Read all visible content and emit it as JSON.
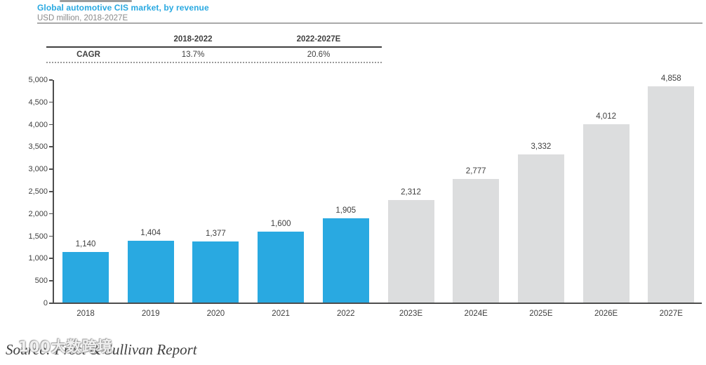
{
  "header": {
    "title": "Global automotive CIS market, by revenue",
    "subtitle": "USD million, 2018-2027E"
  },
  "cagr_table": {
    "row_label": "CAGR",
    "columns": [
      "2018-2022",
      "2022-2027E"
    ],
    "values": [
      "13.7%",
      "20.6%"
    ]
  },
  "chart_data": {
    "type": "bar",
    "title": "Global automotive CIS market, by revenue",
    "xlabel": "",
    "ylabel": "USD million",
    "categories": [
      "2018",
      "2019",
      "2020",
      "2021",
      "2022",
      "2023E",
      "2024E",
      "2025E",
      "2026E",
      "2027E"
    ],
    "values": [
      1140,
      1404,
      1377,
      1600,
      1905,
      2312,
      2777,
      3332,
      4012,
      4858
    ],
    "value_labels": [
      "1,140",
      "1,404",
      "1,377",
      "1,600",
      "1,905",
      "2,312",
      "2,777",
      "3,332",
      "4,012",
      "4,858"
    ],
    "series_note": "bars 2018-2022 are actuals (blue), 2023E-2027E are estimates (gray)",
    "ylim": [
      0,
      5000
    ],
    "ytick_step": 500,
    "ytick_labels": [
      "0",
      "500",
      "1,000",
      "1,500",
      "2,000",
      "2,500",
      "3,000",
      "3,500",
      "4,000",
      "4,500",
      "5,000"
    ],
    "grid": false,
    "legend": "none",
    "colors": {
      "bar_actual": "#29a9e1",
      "bar_estimate": "#dcddde",
      "title_accent": "#29a9e1",
      "axis": "#4d4d4d",
      "text": "#404040"
    }
  },
  "footer": {
    "source": "Source: Frost & Sullivan Report",
    "watermark": "100大数跨境"
  }
}
